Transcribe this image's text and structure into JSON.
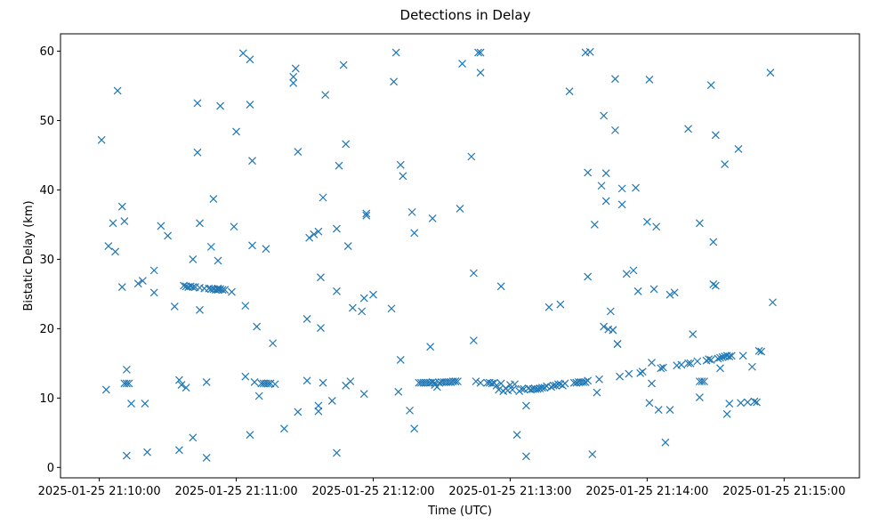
{
  "chart_data": {
    "type": "scatter",
    "title": "Detections in Delay",
    "xlabel": "Time (UTC)",
    "ylabel": "Bistatic Delay (km)",
    "marker": "x",
    "color": "#1f77b4",
    "xlim_seconds": [
      -17,
      333
    ],
    "ylim": [
      -1.5,
      62.5
    ],
    "x_ticks": [
      {
        "value": 0,
        "label": "2025-01-25 21:10:00"
      },
      {
        "value": 60,
        "label": "2025-01-25 21:11:00"
      },
      {
        "value": 120,
        "label": "2025-01-25 21:12:00"
      },
      {
        "value": 180,
        "label": "2025-01-25 21:13:00"
      },
      {
        "value": 240,
        "label": "2025-01-25 21:14:00"
      },
      {
        "value": 300,
        "label": "2025-01-25 21:15:00"
      }
    ],
    "y_ticks": [
      0,
      10,
      20,
      30,
      40,
      50,
      60
    ],
    "x_units": "seconds after 2025-01-25 21:10:00",
    "points": [
      [
        1,
        47.2
      ],
      [
        3,
        11.2
      ],
      [
        4,
        31.9
      ],
      [
        6,
        35.2
      ],
      [
        7,
        31.1
      ],
      [
        8,
        54.3
      ],
      [
        10,
        37.6
      ],
      [
        10,
        26.0
      ],
      [
        11,
        35.5
      ],
      [
        11,
        12.1
      ],
      [
        12,
        14.1
      ],
      [
        12,
        1.7
      ],
      [
        12,
        12.1
      ],
      [
        13,
        12.1
      ],
      [
        14,
        9.2
      ],
      [
        17,
        26.5
      ],
      [
        19,
        26.9
      ],
      [
        20,
        9.2
      ],
      [
        21,
        2.2
      ],
      [
        24,
        28.4
      ],
      [
        24,
        25.2
      ],
      [
        27,
        34.8
      ],
      [
        30,
        33.4
      ],
      [
        33,
        23.2
      ],
      [
        35,
        12.6
      ],
      [
        35,
        2.5
      ],
      [
        36,
        11.9
      ],
      [
        37,
        26.2
      ],
      [
        38,
        11.5
      ],
      [
        38,
        26.1
      ],
      [
        39,
        26.0
      ],
      [
        40,
        26.1
      ],
      [
        41,
        26.0
      ],
      [
        41,
        30.0
      ],
      [
        41,
        4.3
      ],
      [
        42,
        26.0
      ],
      [
        43,
        52.5
      ],
      [
        43,
        45.4
      ],
      [
        44,
        25.9
      ],
      [
        44,
        22.7
      ],
      [
        44,
        35.2
      ],
      [
        46,
        25.8
      ],
      [
        47,
        12.3
      ],
      [
        47,
        1.4
      ],
      [
        48,
        25.8
      ],
      [
        49,
        25.7
      ],
      [
        49,
        31.8
      ],
      [
        50,
        25.7
      ],
      [
        50,
        38.7
      ],
      [
        51,
        25.6
      ],
      [
        52,
        25.6
      ],
      [
        52,
        29.8
      ],
      [
        52,
        25.8
      ],
      [
        53,
        25.7
      ],
      [
        53,
        52.1
      ],
      [
        54,
        25.6
      ],
      [
        55,
        25.6
      ],
      [
        58,
        25.3
      ],
      [
        59,
        34.7
      ],
      [
        60,
        48.4
      ],
      [
        63,
        59.7
      ],
      [
        64,
        23.3
      ],
      [
        64,
        13.1
      ],
      [
        66,
        58.8
      ],
      [
        66,
        52.3
      ],
      [
        66,
        4.7
      ],
      [
        67,
        32.0
      ],
      [
        67,
        44.2
      ],
      [
        68,
        12.3
      ],
      [
        69,
        20.3
      ],
      [
        70,
        10.3
      ],
      [
        71,
        12.1
      ],
      [
        72,
        12.1
      ],
      [
        73,
        31.5
      ],
      [
        73,
        12.1
      ],
      [
        74,
        12.1
      ],
      [
        75,
        12.1
      ],
      [
        76,
        17.9
      ],
      [
        77,
        12.0
      ],
      [
        81,
        5.6
      ],
      [
        85,
        55.4
      ],
      [
        85,
        56.3
      ],
      [
        86,
        57.5
      ],
      [
        87,
        45.5
      ],
      [
        87,
        8.0
      ],
      [
        91,
        21.4
      ],
      [
        91,
        12.5
      ],
      [
        92,
        33.1
      ],
      [
        94,
        33.6
      ],
      [
        96,
        34.0
      ],
      [
        96,
        8.9
      ],
      [
        96,
        8.1
      ],
      [
        97,
        27.4
      ],
      [
        97,
        20.1
      ],
      [
        98,
        38.9
      ],
      [
        98,
        12.2
      ],
      [
        99,
        53.7
      ],
      [
        102,
        9.6
      ],
      [
        104,
        34.4
      ],
      [
        104,
        25.4
      ],
      [
        105,
        43.5
      ],
      [
        107,
        58.0
      ],
      [
        108,
        46.6
      ],
      [
        108,
        11.8
      ],
      [
        109,
        31.9
      ],
      [
        110,
        12.4
      ],
      [
        111,
        23.0
      ],
      [
        104,
        2.1
      ],
      [
        115,
        22.5
      ],
      [
        116,
        24.4
      ],
      [
        116,
        10.6
      ],
      [
        117,
        36.6
      ],
      [
        117,
        36.3
      ],
      [
        120,
        24.9
      ],
      [
        128,
        22.9
      ],
      [
        129,
        55.6
      ],
      [
        130,
        59.8
      ],
      [
        131,
        10.9
      ],
      [
        132,
        15.5
      ],
      [
        132,
        43.6
      ],
      [
        133,
        42.0
      ],
      [
        136,
        8.2
      ],
      [
        137,
        36.8
      ],
      [
        138,
        5.6
      ],
      [
        138,
        33.8
      ],
      [
        140,
        12.2
      ],
      [
        141,
        12.2
      ],
      [
        142,
        12.2
      ],
      [
        143,
        12.2
      ],
      [
        144,
        12.2
      ],
      [
        145,
        17.4
      ],
      [
        145,
        12.2
      ],
      [
        146,
        35.9
      ],
      [
        146,
        12.3
      ],
      [
        147,
        11.9
      ],
      [
        147,
        12.2
      ],
      [
        148,
        11.6
      ],
      [
        149,
        12.2
      ],
      [
        150,
        12.3
      ],
      [
        151,
        12.3
      ],
      [
        152,
        12.3
      ],
      [
        153,
        12.3
      ],
      [
        154,
        12.3
      ],
      [
        155,
        12.4
      ],
      [
        156,
        12.4
      ],
      [
        156,
        12.4
      ],
      [
        157,
        12.4
      ],
      [
        158,
        37.3
      ],
      [
        159,
        58.2
      ],
      [
        163,
        44.8
      ],
      [
        164,
        28.0
      ],
      [
        164,
        18.3
      ],
      [
        165,
        12.4
      ],
      [
        166,
        59.8
      ],
      [
        167,
        59.8
      ],
      [
        167,
        56.9
      ],
      [
        167,
        12.2
      ],
      [
        170,
        12.2
      ],
      [
        171,
        12.2
      ],
      [
        172,
        12.1
      ],
      [
        173,
        12.2
      ],
      [
        174,
        11.8
      ],
      [
        175,
        11.2
      ],
      [
        176,
        12.1
      ],
      [
        176,
        26.1
      ],
      [
        177,
        11.0
      ],
      [
        178,
        11.4
      ],
      [
        179,
        11.1
      ],
      [
        180,
        11.9
      ],
      [
        181,
        11.2
      ],
      [
        182,
        12.0
      ],
      [
        183,
        4.7
      ],
      [
        184,
        11.0
      ],
      [
        185,
        11.3
      ],
      [
        186,
        11.3
      ],
      [
        187,
        8.9
      ],
      [
        187,
        1.6
      ],
      [
        188,
        11.4
      ],
      [
        189,
        11.2
      ],
      [
        190,
        11.3
      ],
      [
        191,
        11.3
      ],
      [
        192,
        11.3
      ],
      [
        193,
        11.4
      ],
      [
        194,
        11.5
      ],
      [
        195,
        11.5
      ],
      [
        196,
        11.7
      ],
      [
        197,
        23.1
      ],
      [
        198,
        11.6
      ],
      [
        199,
        11.8
      ],
      [
        200,
        11.8
      ],
      [
        201,
        12.0
      ],
      [
        202,
        23.5
      ],
      [
        202,
        12.0
      ],
      [
        203,
        11.8
      ],
      [
        204,
        12.1
      ],
      [
        206,
        54.2
      ],
      [
        208,
        12.2
      ],
      [
        209,
        12.2
      ],
      [
        210,
        12.3
      ],
      [
        211,
        12.3
      ],
      [
        212,
        12.3
      ],
      [
        213,
        12.3
      ],
      [
        213,
        59.8
      ],
      [
        214,
        27.5
      ],
      [
        214,
        42.5
      ],
      [
        214,
        12.5
      ],
      [
        215,
        59.9
      ],
      [
        216,
        1.9
      ],
      [
        217,
        35.0
      ],
      [
        218,
        10.8
      ],
      [
        219,
        12.7
      ],
      [
        220,
        40.6
      ],
      [
        221,
        20.3
      ],
      [
        221,
        50.7
      ],
      [
        222,
        38.4
      ],
      [
        222,
        42.4
      ],
      [
        223,
        19.9
      ],
      [
        224,
        22.5
      ],
      [
        225,
        19.8
      ],
      [
        225,
        19.8
      ],
      [
        226,
        56.0
      ],
      [
        226,
        48.6
      ],
      [
        227,
        17.8
      ],
      [
        228,
        13.1
      ],
      [
        227,
        17.8
      ],
      [
        229,
        37.9
      ],
      [
        229,
        40.2
      ],
      [
        231,
        27.9
      ],
      [
        232,
        13.5
      ],
      [
        234,
        28.4
      ],
      [
        235,
        40.3
      ],
      [
        236,
        25.4
      ],
      [
        237,
        13.6
      ],
      [
        238,
        13.8
      ],
      [
        240,
        35.4
      ],
      [
        241,
        55.9
      ],
      [
        241,
        9.3
      ],
      [
        242,
        12.1
      ],
      [
        242,
        15.1
      ],
      [
        243,
        25.7
      ],
      [
        244,
        34.7
      ],
      [
        245,
        8.3
      ],
      [
        246,
        14.3
      ],
      [
        247,
        14.4
      ],
      [
        248,
        3.6
      ],
      [
        250,
        24.9
      ],
      [
        250,
        8.3
      ],
      [
        252,
        25.2
      ],
      [
        253,
        14.7
      ],
      [
        255,
        14.8
      ],
      [
        258,
        48.8
      ],
      [
        258,
        15.0
      ],
      [
        259,
        15.0
      ],
      [
        260,
        19.2
      ],
      [
        262,
        15.3
      ],
      [
        263,
        35.2
      ],
      [
        263,
        12.4
      ],
      [
        263,
        10.1
      ],
      [
        264,
        12.4
      ],
      [
        265,
        12.4
      ],
      [
        266,
        15.4
      ],
      [
        267,
        15.6
      ],
      [
        268,
        55.1
      ],
      [
        268,
        15.5
      ],
      [
        269,
        32.5
      ],
      [
        269,
        26.4
      ],
      [
        270,
        26.2
      ],
      [
        270,
        47.9
      ],
      [
        271,
        15.7
      ],
      [
        272,
        15.8
      ],
      [
        272,
        14.3
      ],
      [
        273,
        15.9
      ],
      [
        274,
        16.0
      ],
      [
        274,
        43.7
      ],
      [
        275,
        16.1
      ],
      [
        275,
        7.7
      ],
      [
        276,
        9.2
      ],
      [
        276,
        16.0
      ],
      [
        277,
        16.1
      ],
      [
        280,
        45.9
      ],
      [
        281,
        9.3
      ],
      [
        282,
        16.1
      ],
      [
        284,
        9.4
      ],
      [
        286,
        14.5
      ],
      [
        287,
        9.5
      ],
      [
        288,
        9.4
      ],
      [
        289,
        16.8
      ],
      [
        290,
        16.7
      ],
      [
        294,
        56.9
      ],
      [
        295,
        23.8
      ]
    ]
  }
}
